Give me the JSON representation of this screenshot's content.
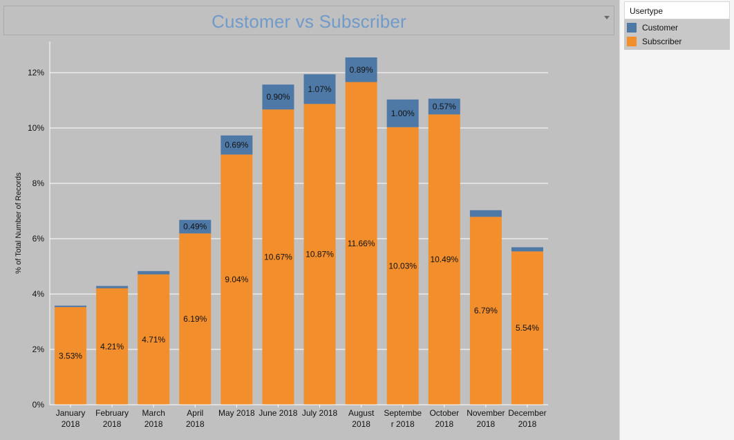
{
  "legend": {
    "title": "Usertype",
    "items": [
      {
        "label": "Customer",
        "color": "#4e79a7"
      },
      {
        "label": "Subscriber",
        "color": "#f28e2b"
      }
    ]
  },
  "chart_data": {
    "type": "bar",
    "stacked": true,
    "title": "Customer vs Subscriber",
    "xlabel": "",
    "ylabel": "% of Total Number of Records",
    "ylim": [
      0,
      13
    ],
    "yticks": [
      "0%",
      "2%",
      "4%",
      "6%",
      "8%",
      "10%",
      "12%"
    ],
    "ytick_values": [
      0,
      2,
      4,
      6,
      8,
      10,
      12
    ],
    "grid": true,
    "categories": [
      [
        "January",
        "2018"
      ],
      [
        "February",
        "2018"
      ],
      [
        "March",
        "2018"
      ],
      [
        "April",
        "2018"
      ],
      [
        "May 2018"
      ],
      [
        "June 2018"
      ],
      [
        "July 2018"
      ],
      [
        "August",
        "2018"
      ],
      [
        "Septembe",
        "r 2018"
      ],
      [
        "October",
        "2018"
      ],
      [
        "November",
        "2018"
      ],
      [
        "December",
        "2018"
      ]
    ],
    "series": [
      {
        "name": "Subscriber",
        "color": "#f28e2b",
        "values": [
          3.53,
          4.21,
          4.71,
          6.19,
          9.04,
          10.67,
          10.87,
          11.66,
          10.03,
          10.49,
          6.79,
          5.54
        ],
        "labels": [
          "3.53%",
          "4.21%",
          "4.71%",
          "6.19%",
          "9.04%",
          "10.67%",
          "10.87%",
          "11.66%",
          "10.03%",
          "10.49%",
          "6.79%",
          "5.54%"
        ]
      },
      {
        "name": "Customer",
        "color": "#4e79a7",
        "values": [
          0.05,
          0.08,
          0.12,
          0.49,
          0.69,
          0.9,
          1.07,
          0.89,
          1.0,
          0.57,
          0.24,
          0.15
        ],
        "labels": [
          "",
          "",
          "",
          "0.49%",
          "0.69%",
          "0.90%",
          "1.07%",
          "0.89%",
          "1.00%",
          "0.57%",
          "",
          ""
        ]
      }
    ]
  }
}
